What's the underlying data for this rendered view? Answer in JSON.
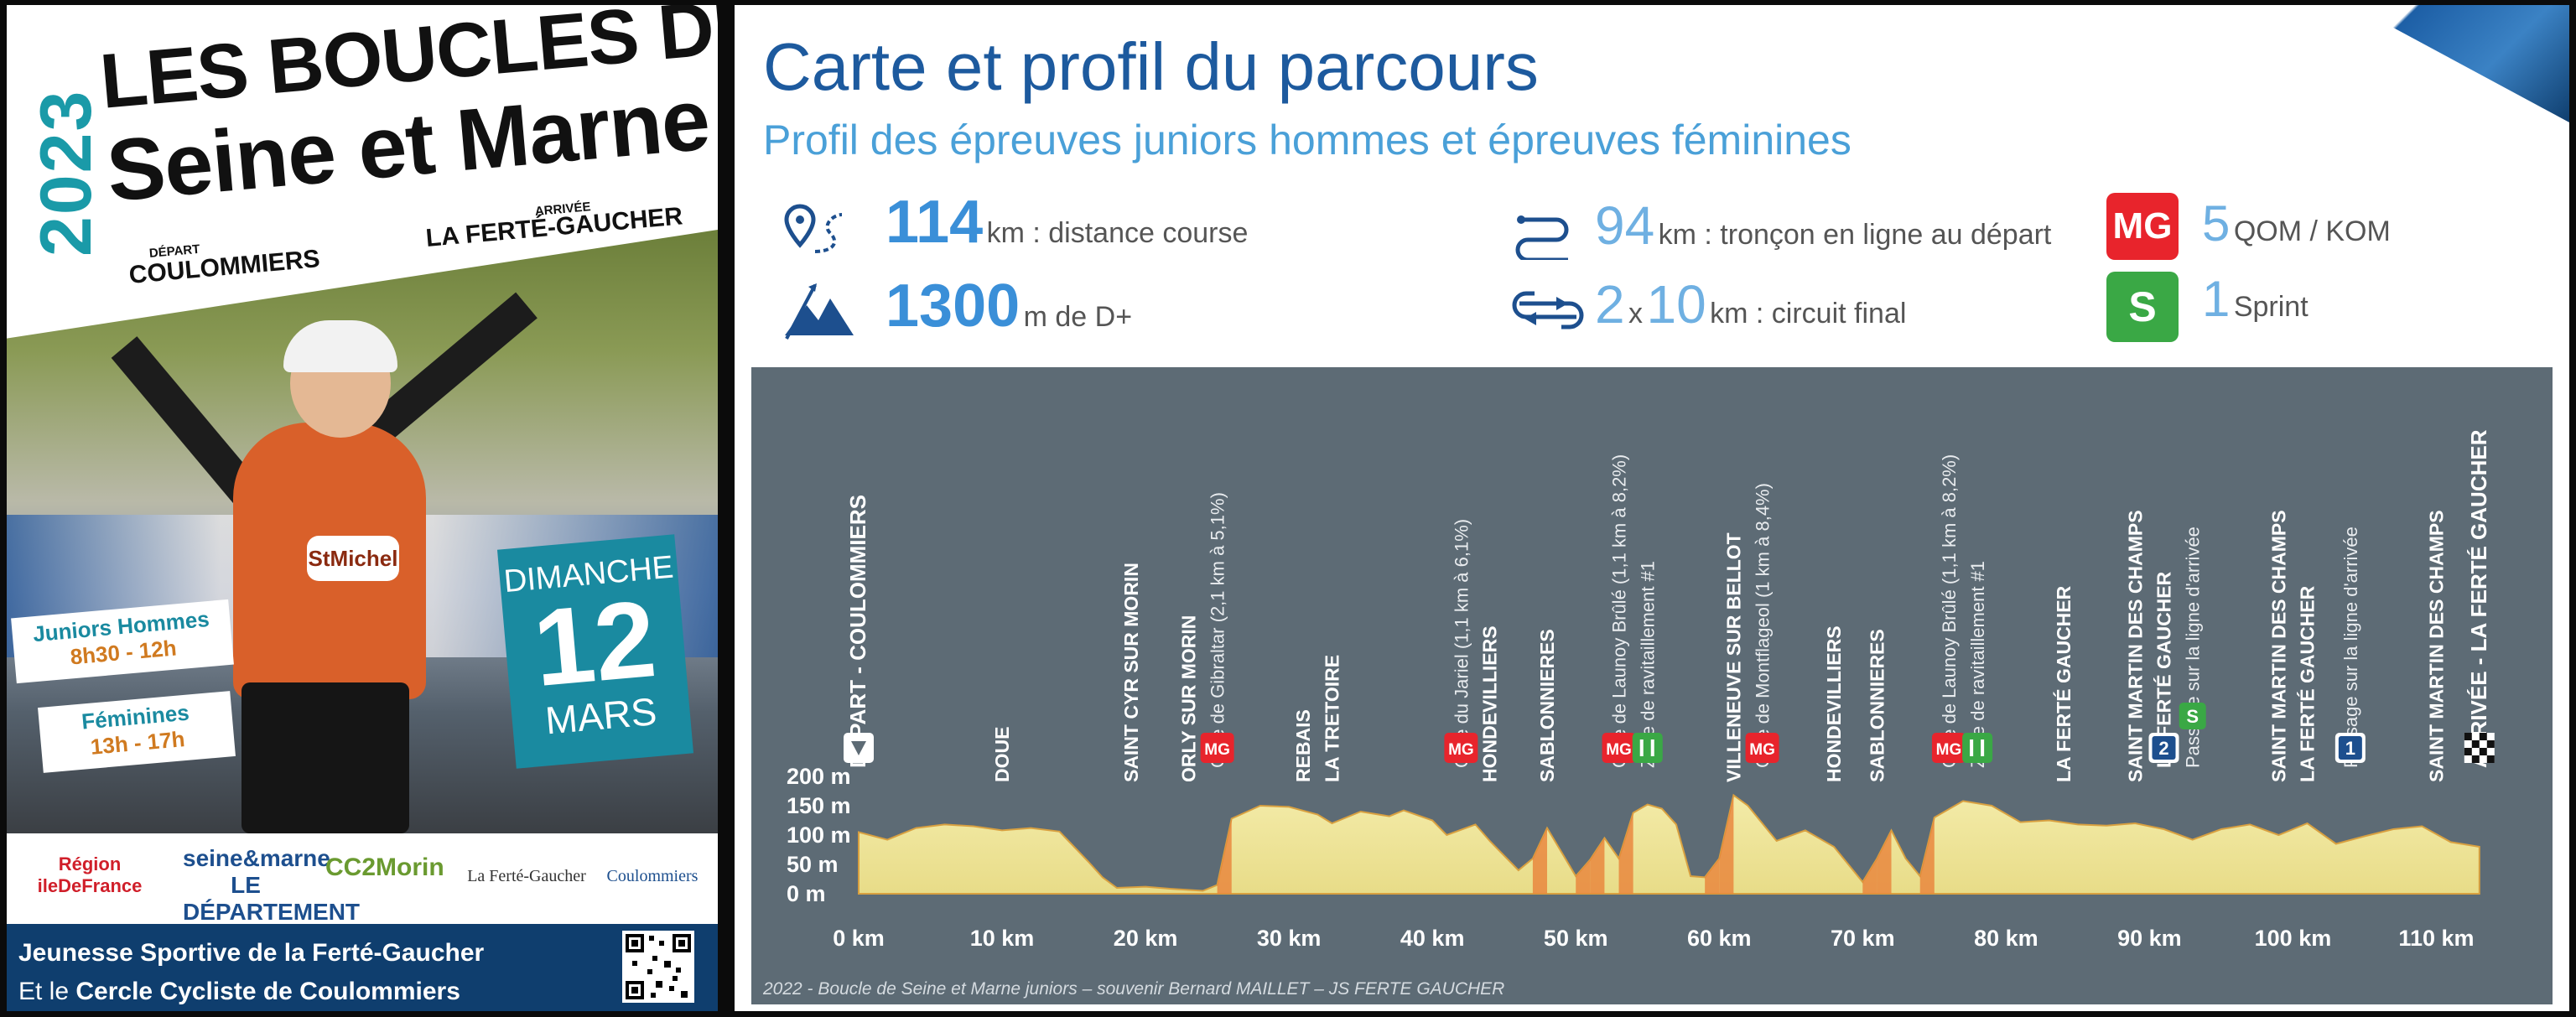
{
  "poster": {
    "year": "2023",
    "title_line1": "LES BOUCLES DE",
    "title_line2": "Seine et Marne",
    "depart_small": "DÉPART",
    "depart_city": "COULOMMIERS",
    "arrivee_small": "ARRIVÉE",
    "arrivee_city": "LA FERTÉ-GAUCHER",
    "juniors_label": "Juniors Hommes",
    "juniors_time": "8h30 - 12h",
    "feminines_label": "Féminines",
    "feminines_time": "13h - 17h",
    "day_name": "DIMANCHE",
    "day_number": "12",
    "month": "MARS",
    "jersey_text": "StMichel",
    "logos": [
      "Région ileDeFrance",
      "seine&marne LE DÉPARTEMENT",
      "CC2Morin",
      "La Ferté-Gaucher",
      "Coulommiers"
    ],
    "footer_line1": "Jeunesse Sportive de la Ferté-Gaucher",
    "footer_line2_prefix": "Et le ",
    "footer_line2_bold": "Cercle Cycliste de Coulommiers"
  },
  "panel": {
    "title": "Carte et profil du parcours",
    "subtitle": "Profil des épreuves juniors hommes et épreuves féminines",
    "stats": {
      "distance_value": "114",
      "distance_text": "km : distance course",
      "elevation_value": "1300",
      "elevation_text": "m  de D+",
      "line_value": "94",
      "line_text": "km : tronçon en ligne au départ",
      "circuit_laps": "2",
      "circuit_x": "x",
      "circuit_value": "10",
      "circuit_text": "km : circuit final",
      "qom_value": "5",
      "qom_text": "QOM / KOM",
      "sprint_value": "1",
      "sprint_text": "Sprint",
      "mg_badge": "MG",
      "s_badge": "S"
    },
    "credit": "2022 - Boucle de Seine et Marne juniors – souvenir Bernard MAILLET – JS FERTE GAUCHER"
  },
  "chart_data": {
    "type": "area",
    "xlabel": "",
    "ylabel": "",
    "xlim": [
      0,
      115
    ],
    "ylim": [
      0,
      200
    ],
    "x_ticks": [
      "0 km",
      "10 km",
      "20 km",
      "30 km",
      "40 km",
      "50 km",
      "60 km",
      "70 km",
      "80 km",
      "90 km",
      "100 km",
      "110 km"
    ],
    "y_ticks": [
      "200 m",
      "150 m",
      "100 m",
      "50 m",
      "0 m"
    ],
    "profile": {
      "x": [
        0,
        2,
        4,
        6,
        8,
        10,
        12,
        14,
        16,
        17,
        18,
        20,
        22,
        24,
        25,
        26,
        28,
        30,
        32,
        33,
        35,
        37,
        38,
        40,
        41,
        43,
        44,
        46,
        47,
        48,
        50,
        51,
        52,
        53,
        54,
        55,
        56,
        57,
        58,
        59,
        60,
        61,
        62,
        64,
        66,
        68,
        70,
        71,
        72,
        73,
        74,
        75,
        77,
        79,
        81,
        83,
        85,
        87,
        89,
        91,
        93,
        95,
        97,
        99,
        101,
        103,
        105,
        107,
        109,
        111,
        113
      ],
      "y": [
        105,
        92,
        112,
        118,
        115,
        108,
        112,
        106,
        55,
        28,
        10,
        12,
        8,
        5,
        15,
        128,
        150,
        148,
        135,
        120,
        140,
        132,
        142,
        125,
        100,
        118,
        90,
        40,
        60,
        112,
        30,
        58,
        95,
        60,
        138,
        152,
        145,
        118,
        30,
        28,
        60,
        168,
        150,
        90,
        108,
        80,
        20,
        60,
        108,
        60,
        30,
        130,
        158,
        150,
        122,
        125,
        118,
        116,
        120,
        110,
        92,
        110,
        118,
        100,
        120,
        85,
        98,
        110,
        115,
        88,
        80
      ]
    },
    "waypoints": [
      {
        "km": 0,
        "name": "DÉPART - COULOMMIERS",
        "marker": "start"
      },
      {
        "km": 10,
        "name": "DOUE"
      },
      {
        "km": 19,
        "name": "SAINT CYR SUR MORIN"
      },
      {
        "km": 23,
        "name": "ORLY SUR MORIN"
      },
      {
        "km": 25,
        "name": "Côte de Gibraltar (2,1 km à 5,1%)",
        "marker": "MG"
      },
      {
        "km": 31,
        "name": "REBAIS"
      },
      {
        "km": 33,
        "name": "LA TRETOIRE"
      },
      {
        "km": 42,
        "name": "Côte du Jariel (1,1 km à 6,1%)",
        "marker": "MG"
      },
      {
        "km": 44,
        "name": "HONDEVILLIERS"
      },
      {
        "km": 48,
        "name": "SABLONNIERES"
      },
      {
        "km": 53,
        "name": "Côte de Launoy Brûlé (1,1 km à 8,2%)",
        "marker": "MG"
      },
      {
        "km": 55,
        "name": "Zone de ravitaillement #1",
        "marker": "feed"
      },
      {
        "km": 61,
        "name": "VILLENEUVE SUR BELLOT"
      },
      {
        "km": 63,
        "name": "Côte de Montflageol (1 km à 8,4%)",
        "marker": "MG"
      },
      {
        "km": 68,
        "name": "HONDEVILLIERS"
      },
      {
        "km": 71,
        "name": "SABLONNIERES"
      },
      {
        "km": 76,
        "name": "Côte de Launoy Brûlé (1,1 km à 8,2%)",
        "marker": "MG"
      },
      {
        "km": 78,
        "name": "Zone de ravitaillement #1",
        "marker": "feed"
      },
      {
        "km": 84,
        "name": "LA FERTÉ GAUCHER"
      },
      {
        "km": 89,
        "name": "SAINT MARTIN DES CHAMPS"
      },
      {
        "km": 91,
        "name": "LA FERTÉ GAUCHER",
        "marker": "2"
      },
      {
        "km": 93,
        "name": "Passage sur la ligne d'arrivée",
        "marker": "S"
      },
      {
        "km": 99,
        "name": "SAINT MARTIN DES CHAMPS"
      },
      {
        "km": 101,
        "name": "LA FERTÉ GAUCHER"
      },
      {
        "km": 104,
        "name": "Passage sur la ligne d'arrivée",
        "marker": "1"
      },
      {
        "km": 110,
        "name": "SAINT MARTIN DES CHAMPS"
      },
      {
        "km": 113,
        "name": "ARRIVÉE - LA FERTÉ GAUCHER",
        "marker": "finish"
      }
    ]
  },
  "colors": {
    "poster_teal": "#1a8aa0",
    "title_blue": "#1d5a9e",
    "subtitle_blue": "#4aa0d8",
    "chart_bg": "#5d6b75",
    "profile_fill": "#ede6a0",
    "mg_red": "#e8242c",
    "sprint_green": "#3aa845",
    "footer_navy": "#0f3e6e"
  }
}
